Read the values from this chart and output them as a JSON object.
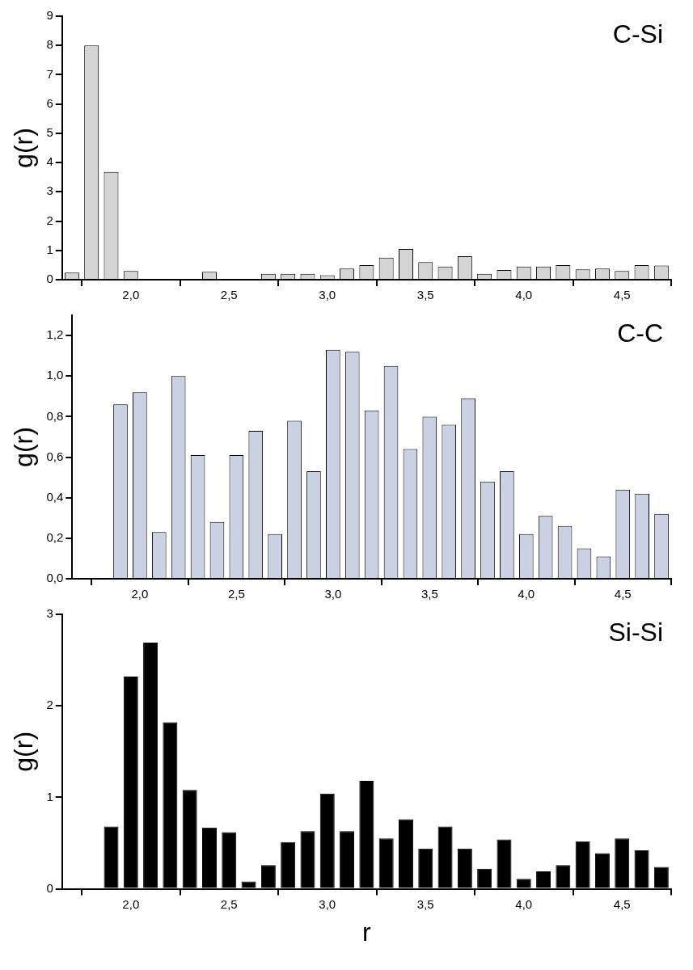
{
  "chart_data": [
    {
      "type": "histogram",
      "ylabel": "g(r)",
      "annotations": [
        "C-Si"
      ],
      "color": "#d4d4d4",
      "bins": [
        1.65,
        1.75,
        1.85,
        1.95,
        2.05,
        2.15,
        2.25,
        2.35,
        2.45,
        2.55,
        2.65,
        2.75,
        2.85,
        2.95,
        3.05,
        3.15,
        3.25,
        3.35,
        3.45,
        3.55,
        3.65,
        3.75,
        3.85,
        3.95,
        4.05,
        4.15,
        4.25,
        4.35,
        4.45,
        4.55,
        4.65,
        4.75
      ],
      "values": [
        0.24,
        8.0,
        3.68,
        0.3,
        0,
        0,
        0,
        0.27,
        0,
        0,
        0.2,
        0.2,
        0.2,
        0.15,
        0.38,
        0.5,
        0.75,
        1.05,
        0.6,
        0.45,
        0.8,
        0.2,
        0.33,
        0.45,
        0.45,
        0.5,
        0.35,
        0.38,
        0.3,
        0.5,
        0.48
      ],
      "xlim": [
        1.65,
        4.75
      ],
      "xticks": [
        {
          "value": 2.0,
          "label": "2,0"
        },
        {
          "value": 2.5,
          "label": "2,5"
        },
        {
          "value": 3.0,
          "label": "3,0"
        },
        {
          "value": 3.5,
          "label": "3,5"
        },
        {
          "value": 4.0,
          "label": "4,0"
        },
        {
          "value": 4.5,
          "label": "4,5"
        }
      ],
      "ylim": [
        0,
        9
      ],
      "yticks": [
        0,
        1,
        2,
        3,
        4,
        5,
        6,
        7,
        8,
        9
      ]
    },
    {
      "type": "histogram",
      "ylabel": "g(r)",
      "annotations": [
        "C-C"
      ],
      "color": "#c9d1e2",
      "bins": [
        1.65,
        1.75,
        1.85,
        1.95,
        2.05,
        2.15,
        2.25,
        2.35,
        2.45,
        2.55,
        2.65,
        2.75,
        2.85,
        2.95,
        3.05,
        3.15,
        3.25,
        3.35,
        3.45,
        3.55,
        3.65,
        3.75,
        3.85,
        3.95,
        4.05,
        4.15,
        4.25,
        4.35,
        4.45,
        4.55,
        4.65,
        4.75
      ],
      "values": [
        0,
        0,
        0.86,
        0.92,
        0.23,
        1.0,
        0.61,
        0.28,
        0.61,
        0.73,
        0.22,
        0.78,
        0.53,
        1.13,
        1.12,
        0.83,
        1.05,
        0.64,
        0.8,
        0.76,
        0.89,
        0.48,
        0.53,
        0.22,
        0.31,
        0.26,
        0.15,
        0.11,
        0.44,
        0.42,
        0.32
      ],
      "xlim": [
        1.65,
        4.75
      ],
      "xticks": [
        {
          "value": 2.0,
          "label": "2,0"
        },
        {
          "value": 2.5,
          "label": "2,5"
        },
        {
          "value": 3.0,
          "label": "3,0"
        },
        {
          "value": 3.5,
          "label": "3,5"
        },
        {
          "value": 4.0,
          "label": "4,0"
        },
        {
          "value": 4.5,
          "label": "4,5"
        }
      ],
      "ylim": [
        0,
        1.3
      ],
      "yticks": [
        {
          "value": 0,
          "label": "0,0"
        },
        {
          "value": 0.2,
          "label": "0,2"
        },
        {
          "value": 0.4,
          "label": "0,4"
        },
        {
          "value": 0.6,
          "label": "0,6"
        },
        {
          "value": 0.8,
          "label": "0,8"
        },
        {
          "value": 1.0,
          "label": "1,0"
        },
        {
          "value": 1.2,
          "label": "1,2"
        }
      ]
    },
    {
      "type": "histogram",
      "xlabel": "r",
      "ylabel": "g(r)",
      "annotations": [
        "Si-Si"
      ],
      "color": "#000000",
      "bins": [
        1.65,
        1.75,
        1.85,
        1.95,
        2.05,
        2.15,
        2.25,
        2.35,
        2.45,
        2.55,
        2.65,
        2.75,
        2.85,
        2.95,
        3.05,
        3.15,
        3.25,
        3.35,
        3.45,
        3.55,
        3.65,
        3.75,
        3.85,
        3.95,
        4.05,
        4.15,
        4.25,
        4.35,
        4.45,
        4.55,
        4.65,
        4.75
      ],
      "values": [
        0,
        0,
        0.68,
        2.32,
        2.69,
        1.82,
        1.08,
        0.67,
        0.62,
        0.08,
        0.26,
        0.51,
        0.63,
        1.04,
        0.63,
        1.18,
        0.55,
        0.76,
        0.44,
        0.68,
        0.44,
        0.22,
        0.54,
        0.11,
        0.19,
        0.26,
        0.52,
        0.39,
        0.55,
        0.42,
        0.24
      ],
      "xlim": [
        1.65,
        4.75
      ],
      "xticks": [
        {
          "value": 2.0,
          "label": "2,0"
        },
        {
          "value": 2.5,
          "label": "2,5"
        },
        {
          "value": 3.0,
          "label": "3,0"
        },
        {
          "value": 3.5,
          "label": "3,5"
        },
        {
          "value": 4.0,
          "label": "4,0"
        },
        {
          "value": 4.5,
          "label": "4,5"
        }
      ],
      "ylim": [
        0,
        3
      ],
      "yticks": [
        0,
        1,
        2,
        3
      ]
    }
  ]
}
